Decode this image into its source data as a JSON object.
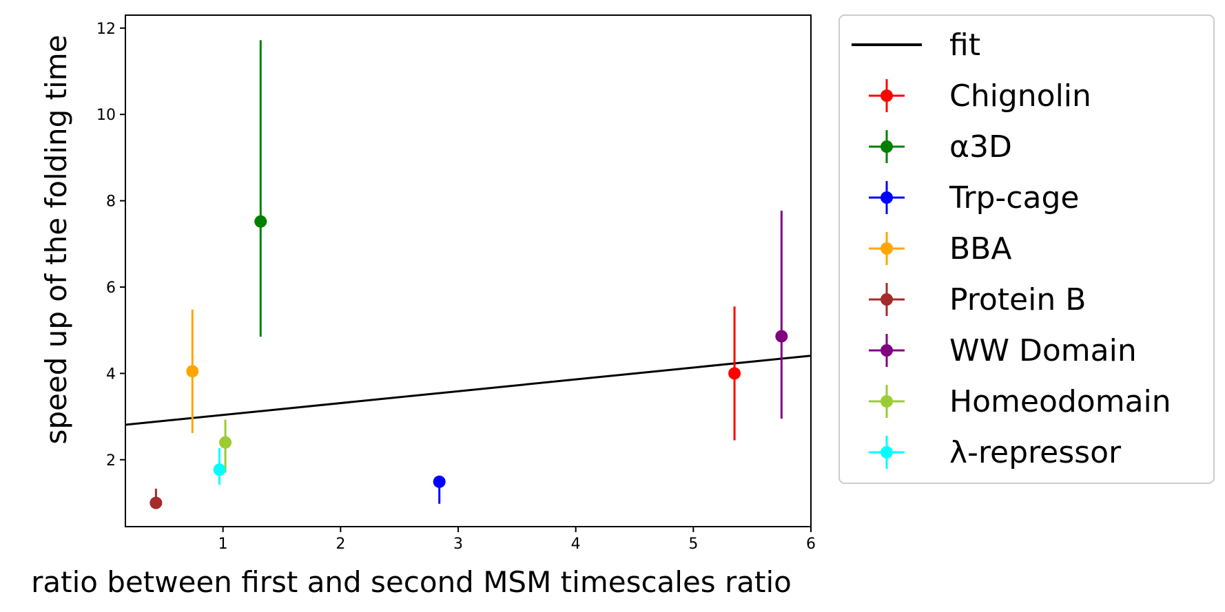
{
  "chart_data": {
    "type": "scatter",
    "xlabel": "ratio between first and second MSM timescales ratio",
    "ylabel": "speed up of the folding time",
    "xlim": [
      0.17,
      6.0
    ],
    "ylim": [
      0.45,
      12.3
    ],
    "xticks": [
      1,
      2,
      3,
      4,
      5,
      6
    ],
    "yticks": [
      2,
      4,
      6,
      8,
      10,
      12
    ],
    "grid": false,
    "legend_position": "outside-right",
    "fit": {
      "name": "fit",
      "color": "#000000",
      "x": [
        0.17,
        6.0
      ],
      "y": [
        2.81,
        4.41
      ]
    },
    "series": [
      {
        "name": "Chignolin",
        "color": "#ff0000",
        "x": 5.35,
        "y": 4.0,
        "err_low": 2.45,
        "err_high": 5.55
      },
      {
        "name": "α3D",
        "color": "#008000",
        "x": 1.32,
        "y": 7.52,
        "err_low": 4.85,
        "err_high": 11.72
      },
      {
        "name": "Trp-cage",
        "color": "#0000ff",
        "x": 2.84,
        "y": 1.49,
        "err_low": 0.98,
        "err_high": 1.49
      },
      {
        "name": "BBA",
        "color": "#ffa500",
        "x": 0.74,
        "y": 4.05,
        "err_low": 2.62,
        "err_high": 5.48
      },
      {
        "name": "Protein B",
        "color": "#a52a2a",
        "x": 0.43,
        "y": 1.0,
        "err_low": 1.0,
        "err_high": 1.33
      },
      {
        "name": "WW Domain",
        "color": "#800080",
        "x": 5.75,
        "y": 4.86,
        "err_low": 2.95,
        "err_high": 7.77
      },
      {
        "name": "Homeodomain",
        "color": "#9acd32",
        "x": 1.02,
        "y": 2.4,
        "err_low": 1.7,
        "err_high": 2.93
      },
      {
        "name": "λ-repressor",
        "color": "#00ffff",
        "x": 0.97,
        "y": 1.77,
        "err_low": 1.42,
        "err_high": 2.27
      }
    ]
  }
}
